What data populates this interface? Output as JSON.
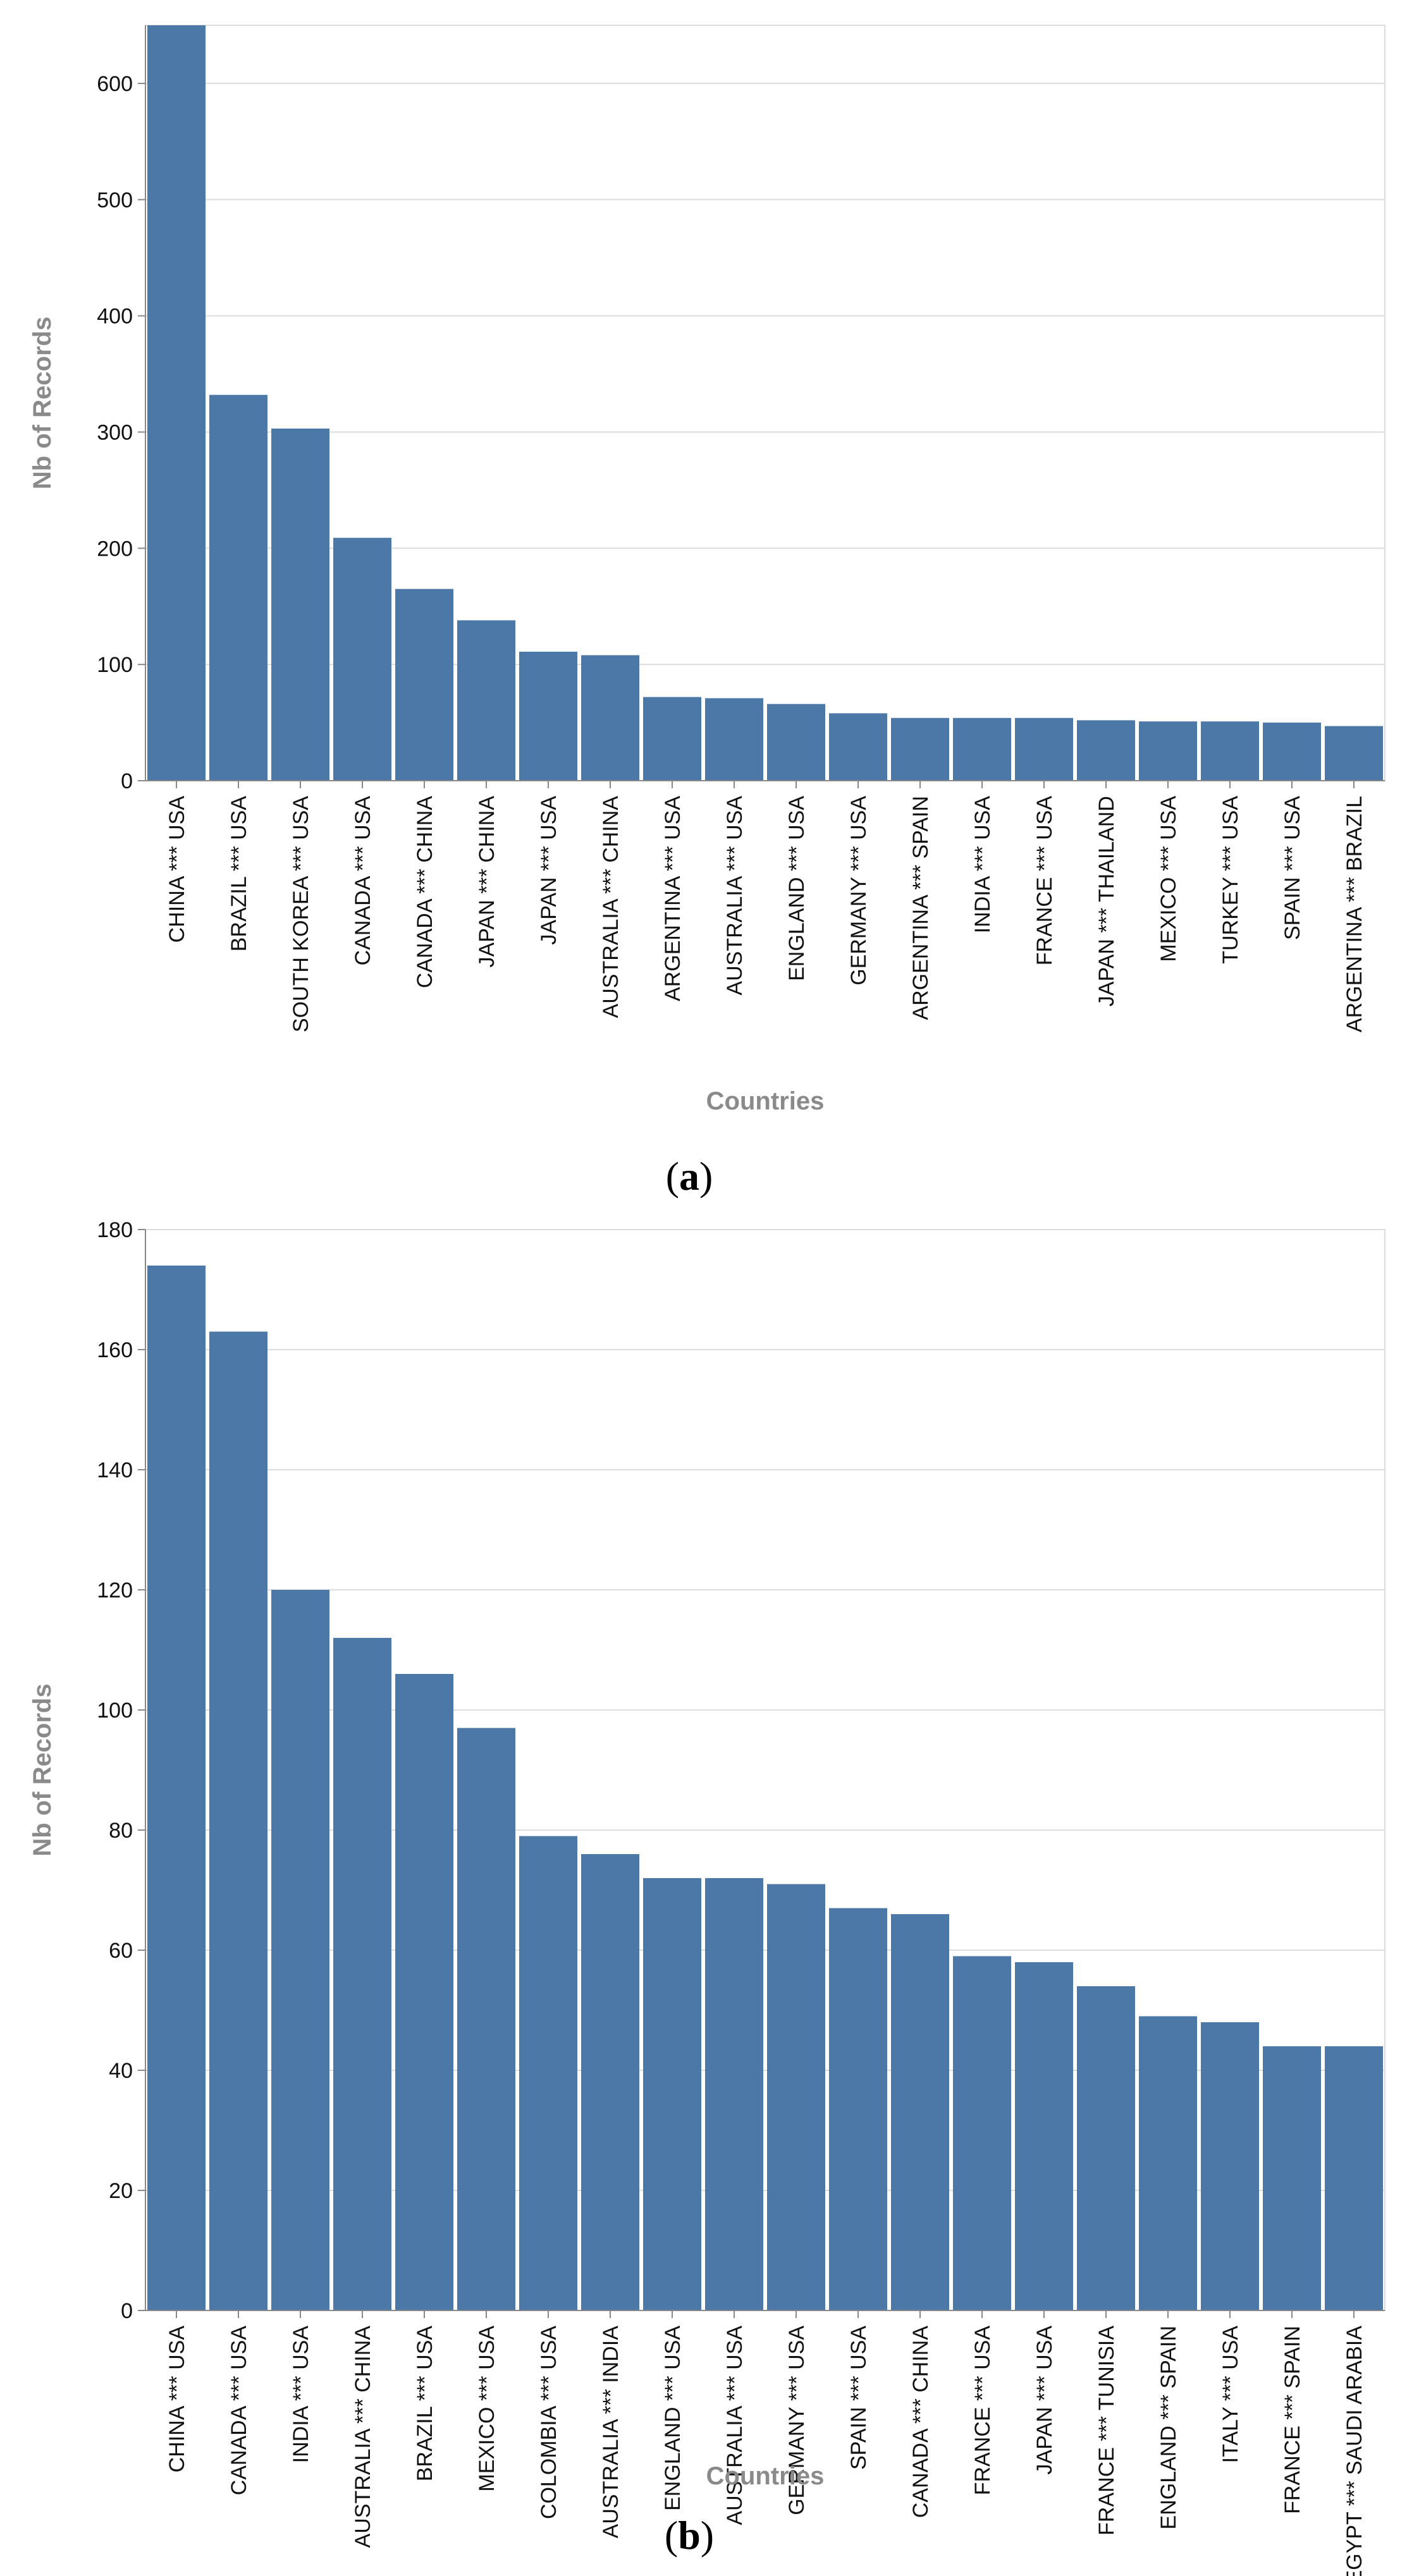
{
  "chart_data": [
    {
      "type": "bar",
      "caption": {
        "open": "(",
        "letter": "a",
        "close": ")"
      },
      "xlabel": "Countries",
      "ylabel": "Nb of Records",
      "ylim": [
        0,
        650
      ],
      "yticks": [
        0,
        100,
        200,
        300,
        400,
        500,
        600
      ],
      "grid": true,
      "color": "#4c78a8",
      "categories": [
        "CHINA *** USA",
        "BRAZIL *** USA",
        "SOUTH KOREA *** USA",
        "CANADA *** USA",
        "CANADA *** CHINA",
        "JAPAN *** CHINA",
        "JAPAN *** USA",
        "AUSTRALIA *** CHINA",
        "ARGENTINA *** USA",
        "AUSTRALIA *** USA",
        "ENGLAND *** USA",
        "GERMANY *** USA",
        "ARGENTINA *** SPAIN",
        "INDIA *** USA",
        "FRANCE *** USA",
        "JAPAN *** THAILAND",
        "MEXICO *** USA",
        "TURKEY *** USA",
        "SPAIN *** USA",
        "ARGENTINA *** BRAZIL"
      ],
      "values": [
        650,
        332,
        303,
        209,
        165,
        138,
        111,
        108,
        72,
        71,
        66,
        58,
        54,
        54,
        54,
        52,
        51,
        51,
        50,
        47
      ]
    },
    {
      "type": "bar",
      "caption": {
        "open": "(",
        "letter": "b",
        "close": ")"
      },
      "xlabel": "Countries",
      "ylabel": "Nb of Records",
      "ylim": [
        0,
        180
      ],
      "yticks": [
        0,
        20,
        40,
        60,
        80,
        100,
        120,
        140,
        160,
        180
      ],
      "grid": true,
      "color": "#4c78a8",
      "categories": [
        "CHINA *** USA",
        "CANADA *** USA",
        "INDIA *** USA",
        "AUSTRALIA *** CHINA",
        "BRAZIL *** USA",
        "MEXICO *** USA",
        "COLOMBIA *** USA",
        "AUSTRALIA *** INDIA",
        "ENGLAND *** USA",
        "AUSTRALIA *** USA",
        "GERMANY *** USA",
        "SPAIN *** USA",
        "CANADA *** CHINA",
        "FRANCE *** USA",
        "JAPAN *** USA",
        "FRANCE *** TUNISIA",
        "ENGLAND *** SPAIN",
        "ITALY *** USA",
        "FRANCE *** SPAIN",
        "EGYPT *** SAUDI ARABIA"
      ],
      "values": [
        174,
        163,
        120,
        112,
        106,
        97,
        79,
        76,
        72,
        72,
        71,
        67,
        66,
        59,
        58,
        54,
        49,
        48,
        44,
        44
      ]
    }
  ]
}
